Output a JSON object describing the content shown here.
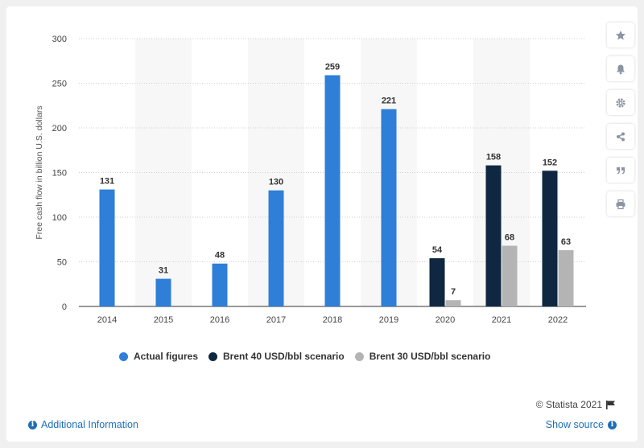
{
  "toolbar": {
    "icons": [
      "star-icon",
      "bell-icon",
      "gear-icon",
      "share-icon",
      "quote-icon",
      "print-icon"
    ]
  },
  "chart_data": {
    "type": "bar",
    "title": "",
    "xlabel": "",
    "ylabel": "Free cash flow in billion U.S. dollars",
    "ylim": [
      0,
      300
    ],
    "yticks": [
      0,
      50,
      100,
      150,
      200,
      250,
      300
    ],
    "categories": [
      "2014",
      "2015",
      "2016",
      "2017",
      "2018",
      "2019",
      "2020",
      "2021",
      "2022"
    ],
    "grid": "horizontal dotted",
    "legend_position": "bottom",
    "series": [
      {
        "name": "Actual figures",
        "color": "#2f7ed8",
        "values": [
          131,
          31,
          48,
          130,
          259,
          221,
          null,
          null,
          null
        ]
      },
      {
        "name": "Brent 40 USD/bbl scenario",
        "color": "#0f2740",
        "values": [
          null,
          null,
          null,
          null,
          null,
          null,
          54,
          158,
          152
        ]
      },
      {
        "name": "Brent 30 USD/bbl scenario",
        "color": "#b4b4b4",
        "values": [
          null,
          null,
          null,
          null,
          null,
          null,
          7,
          68,
          63
        ]
      }
    ]
  },
  "footer": {
    "credit": "© Statista 2021",
    "additional_info": "Additional Information",
    "show_source": "Show source",
    "info_glyph": "i"
  }
}
